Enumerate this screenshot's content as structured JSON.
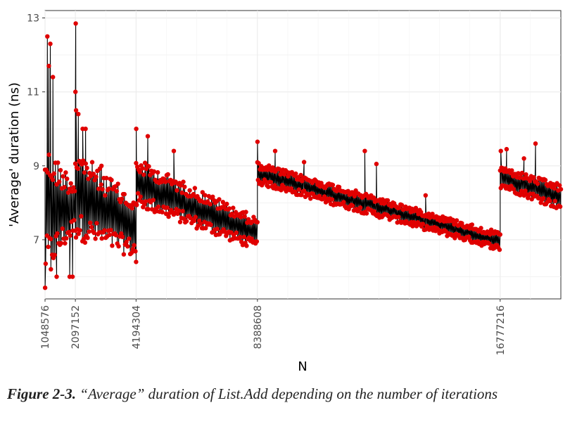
{
  "chart_data": {
    "type": "scatter",
    "xlabel": "N",
    "ylabel": "'Average' duration (ns)",
    "xlim": [
      1048576,
      18874368
    ],
    "ylim": [
      5.4,
      13.2
    ],
    "x_ticks": [
      1048576,
      2097152,
      4194304,
      8388608,
      16777216
    ],
    "x_tick_labels": [
      "1048576",
      "2097152",
      "4194304",
      "8388608",
      "16777216"
    ],
    "y_ticks": [
      7,
      9,
      11,
      13
    ],
    "y_tick_labels": [
      "7",
      "9",
      "11",
      "13"
    ],
    "grid": true,
    "legend": "none",
    "point_color": "#e00000",
    "line_color": "#000000",
    "segments": [
      {
        "x": [
          1048576,
          2097152
        ],
        "y_low": [
          6.0,
          7.2
        ],
        "y_high": [
          9.6,
          8.6
        ],
        "spikes": [
          [
            1130000,
            12.5
          ],
          [
            1230000,
            12.3
          ],
          [
            1320000,
            11.4
          ],
          [
            1180000,
            11.7
          ],
          [
            1050000,
            5.7
          ],
          [
            1250000,
            6.2
          ],
          [
            1450000,
            6.0
          ],
          [
            1900000,
            6.0
          ],
          [
            2000000,
            6.0
          ]
        ]
      },
      {
        "x": [
          2097152,
          4194304
        ],
        "y_low": [
          7.0,
          6.5
        ],
        "y_high": [
          9.5,
          8.1
        ],
        "spikes": [
          [
            2110000,
            12.85
          ],
          [
            2100000,
            11.0
          ],
          [
            2120000,
            10.5
          ],
          [
            2200000,
            10.4
          ],
          [
            2350000,
            10.0
          ],
          [
            2450000,
            10.0
          ],
          [
            3000000,
            9.0
          ]
        ]
      },
      {
        "x": [
          4194304,
          8388608
        ],
        "y_low": [
          7.9,
          6.7
        ],
        "y_high": [
          9.2,
          7.6
        ],
        "spikes": [
          [
            4200000,
            10.0
          ],
          [
            4600000,
            9.8
          ],
          [
            5500000,
            9.4
          ],
          [
            4194304,
            6.4
          ]
        ]
      },
      {
        "x": [
          8388608,
          16777216
        ],
        "y_low": [
          8.5,
          6.7
        ],
        "y_high": [
          9.1,
          7.2
        ],
        "spikes": [
          [
            8390000,
            9.65
          ],
          [
            9000000,
            9.4
          ],
          [
            10000000,
            9.1
          ],
          [
            12100000,
            9.4
          ],
          [
            12500000,
            9.05
          ],
          [
            14200000,
            8.2
          ]
        ]
      },
      {
        "x": [
          16777216,
          18874368
        ],
        "y_low": [
          8.4,
          7.8
        ],
        "y_high": [
          9.0,
          8.5
        ],
        "spikes": [
          [
            16800000,
            9.4
          ],
          [
            17000000,
            9.45
          ],
          [
            17600000,
            9.2
          ],
          [
            18000000,
            9.6
          ]
        ]
      }
    ]
  },
  "caption": {
    "figure_number": "Figure 2-3.",
    "text": "“Average” duration of List.Add depending on the number of iterations"
  }
}
